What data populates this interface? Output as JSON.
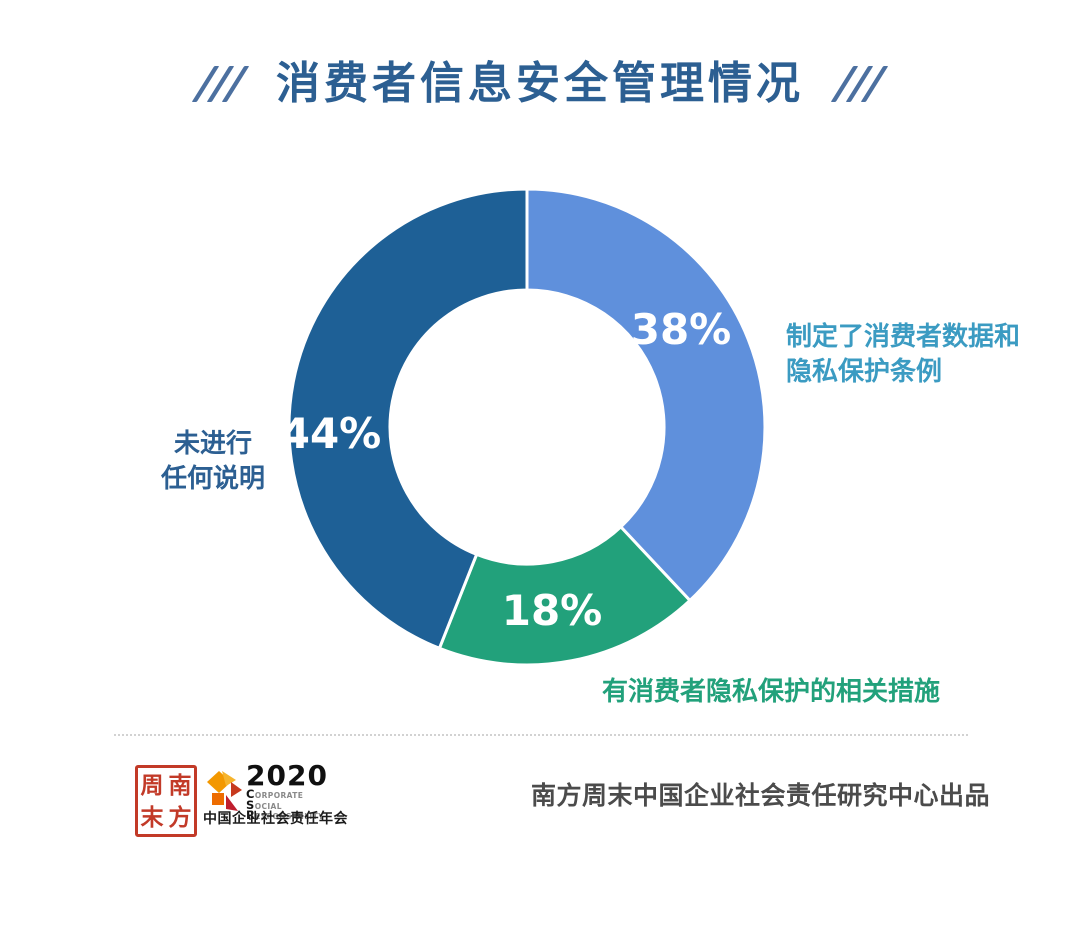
{
  "page": {
    "background": "#FFFFFF"
  },
  "title": {
    "text": "消费者信息安全管理情况",
    "color": "#2C5F92",
    "slash_color": "#4C70A0",
    "decor": "///"
  },
  "chart_data": {
    "type": "pie",
    "subtype": "donut",
    "title": "消费者信息安全管理情况",
    "start_angle_deg": 0,
    "direction": "clockwise",
    "unit": "percent",
    "total": 100,
    "legend_position": "none",
    "value_labels": "inside, white bold",
    "slices": [
      {
        "label": "制定了消费者数据和隐私保护条例",
        "value": 38,
        "display": "38%",
        "color": "#5F90DC"
      },
      {
        "label": "有消费者隐私保护的相关措施",
        "value": 18,
        "display": "18%",
        "color": "#22A17B"
      },
      {
        "label": "未进行任何说明",
        "value": 44,
        "display": "44%",
        "color": "#1E6096"
      }
    ]
  },
  "annotations": {
    "right": {
      "text_line1": "制定了消费者数据和",
      "text_line2": "隐私保护条例",
      "color": "#3B9BC2"
    },
    "left": {
      "text_line1": "未进行",
      "text_line2": "任何说明",
      "color": "#2C5F92"
    },
    "bottom": {
      "text": "有消费者隐私保护的相关措施",
      "color": "#22A17B"
    }
  },
  "footer": {
    "seal": {
      "chars": [
        "周",
        "南",
        "末",
        "方"
      ],
      "color": "#C23A28"
    },
    "csr": {
      "year": "2020",
      "word_lines": [
        "CORPORATE",
        "SOCIAL",
        "RESPONSIBILITY"
      ],
      "subtitle": "中国企业社会责任年会"
    },
    "credit": {
      "text": "南方周末中国企业社会责任研究中心出品",
      "color": "#4B4B4B"
    }
  }
}
